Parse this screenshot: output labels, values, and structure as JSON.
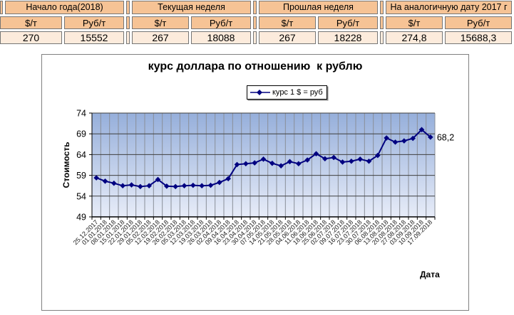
{
  "table": {
    "groups": [
      {
        "header": "Начало года(2018)",
        "sub": [
          "$/т",
          "Руб/т"
        ],
        "values": [
          "270",
          "15552"
        ]
      },
      {
        "header": "Текущая неделя",
        "sub": [
          "$/т",
          "Руб/т"
        ],
        "values": [
          "267",
          "18088"
        ]
      },
      {
        "header": "Прошлая неделя",
        "sub": [
          "$/т",
          "Руб/т"
        ],
        "values": [
          "267",
          "18228"
        ]
      },
      {
        "header": "На аналогичную дату 2017 г",
        "sub": [
          "$/т",
          "Руб/т"
        ],
        "values": [
          "274,8",
          "15688,3"
        ]
      }
    ],
    "colors": {
      "header_bg": "#f6c395",
      "data_bg": "#fcebdc",
      "border": "#757575"
    }
  },
  "chart": {
    "title": "курс доллара по отношению  к рублю",
    "legend_label": "курс 1 $ = руб",
    "x_axis_title": "Дата",
    "y_axis_title": "Стоимость",
    "colors": {
      "series": "#000080",
      "plot_top": "#96afdb",
      "plot_bottom": "#e7ecf8",
      "v_grid": "#8a8f98",
      "h_grid": "#3f3f3f",
      "axis": "#000000"
    }
  },
  "chart_data": {
    "type": "line",
    "title": "курс доллара по отношению  к рублю",
    "xlabel": "Дата",
    "ylabel": "Стоимость",
    "legend": [
      "курс 1 $ = руб"
    ],
    "legend_position": "top",
    "grid": true,
    "ylim": [
      49,
      74
    ],
    "ytick_step": 5,
    "last_point_label": "68,2",
    "categories": [
      "25.12.2017",
      "01.01.2018",
      "08.01.2018",
      "15.01.2018",
      "22.01.2018",
      "29.01.2018",
      "05.02.2018",
      "12.02.2018",
      "19.02.2018",
      "26.02.2018",
      "05.03.2018",
      "12.03.2018",
      "19.03.2018",
      "26.03.2018",
      "02.04.2018",
      "09.04.2018",
      "16.04.2018",
      "23.04.2018",
      "30.04.2018",
      "07.05.2018",
      "14.05.2018",
      "21.05.2018",
      "28.05.2018",
      "04.06.2018",
      "11.06.2018",
      "18.06.2018",
      "25.06.2018",
      "02.07.2018",
      "09.07.2018",
      "16.07.2018",
      "23.07.2018",
      "30.07.2018",
      "06.08.2018",
      "13.08.2018",
      "20.08.2018",
      "27.08.2018",
      "03.09.2018",
      "10.09.2018",
      "17.09.2018"
    ],
    "series": [
      {
        "name": "курс 1 $ = руб",
        "color": "#000080",
        "values": [
          58.4,
          57.6,
          57.1,
          56.5,
          56.7,
          56.3,
          56.5,
          58.0,
          56.4,
          56.3,
          56.5,
          56.6,
          56.5,
          56.6,
          57.3,
          58.2,
          61.6,
          61.8,
          62.0,
          62.9,
          61.9,
          61.3,
          62.3,
          61.8,
          62.7,
          64.2,
          63.0,
          63.3,
          62.2,
          62.4,
          62.9,
          62.4,
          63.8,
          68.0,
          67.0,
          67.3,
          67.9,
          70.0,
          68.2
        ]
      }
    ]
  }
}
